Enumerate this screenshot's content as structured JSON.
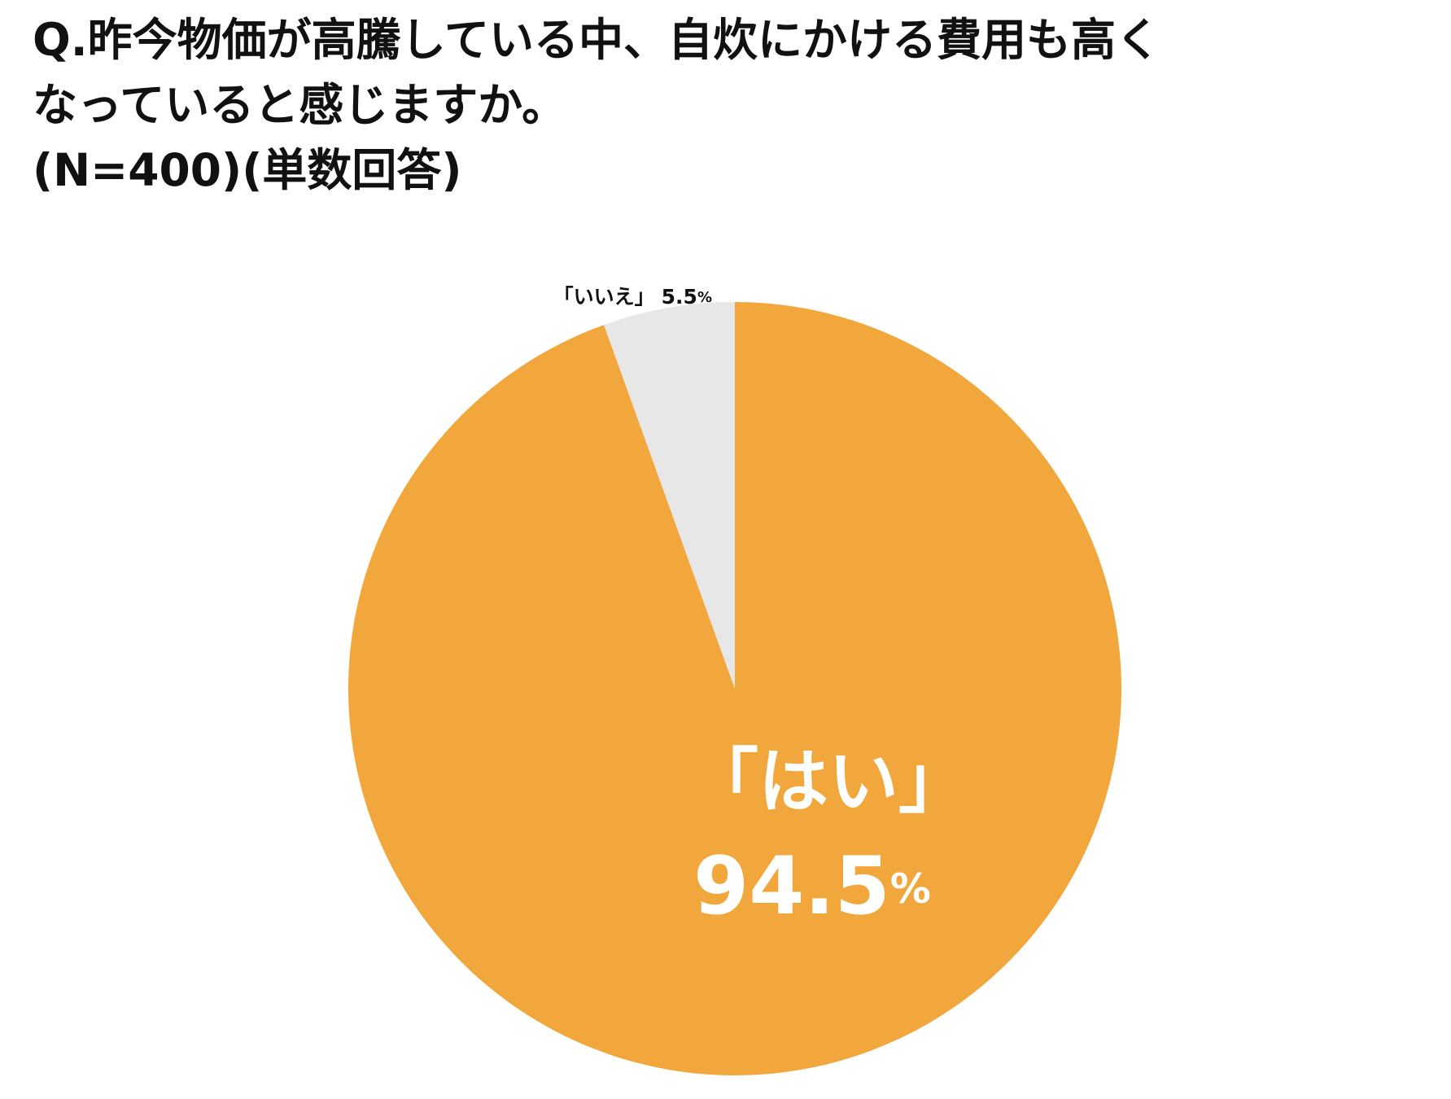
{
  "chart_data": {
    "type": "pie",
    "title": [
      "Q.昨今物価が高騰している中、自炊にかける費用も高く",
      "なっていると感じますか。",
      "(N=400)(単数回答)"
    ],
    "categories": [
      "「はい」",
      "「いいえ」"
    ],
    "values": [
      94.5,
      5.5
    ],
    "unit": "%",
    "colors": [
      "#F2A73D",
      "#E8E7E8"
    ],
    "start_angle": 90,
    "direction": "clockwise"
  }
}
